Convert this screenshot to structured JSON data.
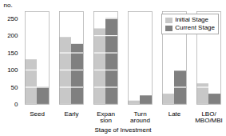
{
  "chart_data": {
    "type": "bar",
    "categories": [
      "Seed",
      "Early",
      "Expan\nsion",
      "Turn\naround",
      "Late",
      "LBO/\nMBO/MBI"
    ],
    "series": [
      {
        "name": "Initial Stage",
        "color": "#c8c8c8",
        "values": [
          130,
          195,
          220,
          10,
          30,
          60
        ]
      },
      {
        "name": "Current Stage",
        "color": "#808080",
        "values": [
          50,
          175,
          250,
          25,
          97,
          30
        ]
      }
    ],
    "xlabel": "Stage of Investment",
    "ylabel": "no.",
    "ylim": [
      0,
      270
    ],
    "yticks": [
      0,
      50,
      100,
      150,
      200,
      250
    ],
    "legend": "upper right"
  }
}
